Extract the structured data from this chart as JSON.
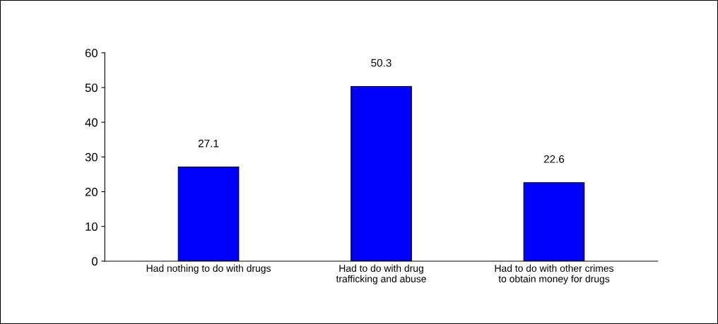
{
  "chart_data": {
    "type": "bar",
    "categories": [
      "Had nothing to do with drugs",
      "Had to do with drug\ntrafficking and abuse",
      "Had to do with other crimes\nto obtain money for drugs"
    ],
    "values": [
      27.1,
      50.3,
      22.6
    ],
    "color": "#0000ff",
    "ylim": [
      0,
      60
    ],
    "yticks": [
      0,
      10,
      20,
      30,
      40,
      50,
      60
    ],
    "grid": false,
    "data_labels": true,
    "legend": false
  }
}
